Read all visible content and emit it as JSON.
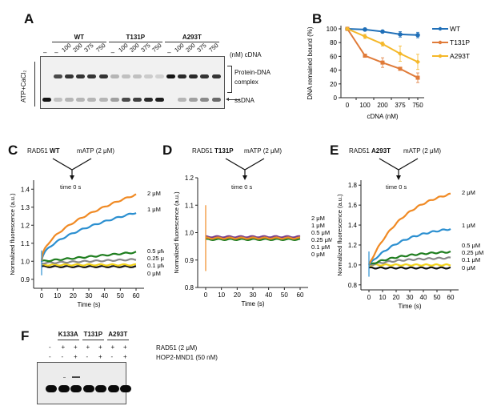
{
  "panels": {
    "A": {
      "letter": "A",
      "groups": [
        "WT",
        "T131P",
        "A293T"
      ],
      "lane_labels": [
        "–",
        "–",
        "100",
        "200",
        "375",
        "750",
        "–",
        "100",
        "200",
        "375",
        "750",
        "–",
        "100",
        "200",
        "375",
        "750"
      ],
      "unit_label": "(nM) cDNA",
      "side_label": "ATP+CaCl₂",
      "band_labels": {
        "complex_line1": "Protein-DNA",
        "complex_line2": "complex",
        "ssdna": "ssDNA"
      },
      "complex_intensity": [
        0,
        0.75,
        0.85,
        0.85,
        0.85,
        0.85,
        0.25,
        0.2,
        0.2,
        0.15,
        0.12,
        1.0,
        0.9,
        0.9,
        0.85,
        0.85
      ],
      "ssdna_intensity": [
        1.0,
        0.2,
        0.25,
        0.25,
        0.25,
        0.25,
        0.35,
        0.75,
        0.8,
        0.9,
        0.95,
        0.0,
        0.25,
        0.35,
        0.45,
        0.6
      ]
    },
    "B": {
      "letter": "B"
    },
    "C": {
      "letter": "C",
      "protein_prefix": "RAD51",
      "protein": "WT",
      "nucleotide": "mATP (2 μM)",
      "time_label": "time 0 s"
    },
    "D": {
      "letter": "D",
      "protein_prefix": "RAD51",
      "protein": "T131P",
      "nucleotide": "mATP (2 μM)",
      "time_label": "time 0 s"
    },
    "E": {
      "letter": "E",
      "protein_prefix": "RAD51",
      "protein": "A293T",
      "nucleotide": "mATP (2 μM)",
      "time_label": "time 0 s"
    },
    "F": {
      "letter": "F",
      "groups": [
        "K133A",
        "T131P",
        "A293T"
      ],
      "rad51_row": [
        "-",
        "+",
        "+",
        "+",
        "+",
        "+",
        "+"
      ],
      "hop2_row": [
        "-",
        "-",
        "+",
        "-",
        "+",
        "-",
        "+"
      ],
      "rad51_label": "RAD51 (2 μM)",
      "hop2_label": "HOP2-MND1 (50 nM)"
    }
  },
  "chart_data": [
    {
      "id": "B",
      "type": "line",
      "title": "",
      "xlabel": "cDNA (nM)",
      "ylabel": "DNA remained bound (%)",
      "categories": [
        "0",
        "100",
        "200",
        "375",
        "750"
      ],
      "ylim": [
        0,
        100
      ],
      "yticks": [
        0,
        20,
        40,
        60,
        80,
        100
      ],
      "legend_position": "right",
      "series": [
        {
          "name": "WT",
          "color": "#1f6fb8",
          "marker": "circle",
          "values": [
            100,
            99,
            96,
            92,
            91
          ],
          "errors": [
            0,
            2,
            2,
            4,
            4
          ]
        },
        {
          "name": "T131P",
          "color": "#e07b39",
          "marker": "square",
          "values": [
            100,
            61,
            51,
            42,
            29
          ],
          "errors": [
            0,
            2,
            7,
            2,
            7
          ]
        },
        {
          "name": "A293T",
          "color": "#f5b82a",
          "marker": "diamond",
          "values": [
            100,
            89,
            78,
            64,
            52
          ],
          "errors": [
            0,
            3,
            3,
            11,
            11
          ]
        }
      ]
    },
    {
      "id": "C",
      "type": "line",
      "xlabel": "Time (s)",
      "ylabel": "Normalized fluorescence (a.u.)",
      "xlim": [
        0,
        60
      ],
      "ylim": [
        0.85,
        1.45
      ],
      "xticks": [
        0,
        10,
        20,
        30,
        40,
        50,
        60
      ],
      "yticks": [
        0.9,
        1.0,
        1.1,
        1.2,
        1.3,
        1.4
      ],
      "series": [
        {
          "name": "2 μM",
          "color": "#f08a24",
          "start": 1.0,
          "end": 1.37,
          "shape": "sqrt"
        },
        {
          "name": "1 μM",
          "color": "#2b8fd0",
          "start": 1.0,
          "end": 1.27,
          "shape": "sqrt"
        },
        {
          "name": "0.5 μM",
          "color": "#1e7d1e",
          "start": 1.0,
          "end": 1.05,
          "shape": "linear"
        },
        {
          "name": "0.25 μM",
          "color": "#888888",
          "start": 0.99,
          "end": 1.01,
          "shape": "linear"
        },
        {
          "name": "0.1 μM",
          "color": "#f2d21b",
          "start": 0.98,
          "end": 0.98,
          "shape": "flat"
        },
        {
          "name": "0 μM",
          "color": "#111111",
          "start": 0.97,
          "end": 0.97,
          "shape": "flat"
        }
      ]
    },
    {
      "id": "D",
      "type": "line",
      "xlabel": "Time (s)",
      "ylabel": "Normalized fluorescence (a.u.)",
      "xlim": [
        0,
        60
      ],
      "ylim": [
        0.8,
        1.2
      ],
      "xticks": [
        0,
        10,
        20,
        30,
        40,
        50,
        60
      ],
      "yticks": [
        0.8,
        0.9,
        1.0,
        1.1,
        1.2
      ],
      "series": [
        {
          "name": "2 μM",
          "color": "#f08a24",
          "start": 0.98,
          "end": 0.98,
          "shape": "flat"
        },
        {
          "name": "1 μM",
          "color": "#2b8fd0",
          "start": 0.98,
          "end": 0.98,
          "shape": "flat"
        },
        {
          "name": "0.5 μM",
          "color": "#1e7d1e",
          "start": 0.975,
          "end": 0.975,
          "shape": "flat"
        },
        {
          "name": "0.25 μM",
          "color": "#888888",
          "start": 0.98,
          "end": 0.98,
          "shape": "flat"
        },
        {
          "name": "0.1 μM",
          "color": "#f2d21b",
          "start": 0.98,
          "end": 0.98,
          "shape": "flat"
        },
        {
          "name": "0 μM",
          "color": "#7a3a8a",
          "start": 0.985,
          "end": 0.985,
          "shape": "flat"
        }
      ]
    },
    {
      "id": "E",
      "type": "line",
      "xlabel": "Time (s)",
      "ylabel": "Normalized fluorescence (a.u.)",
      "xlim": [
        0,
        60
      ],
      "ylim": [
        0.75,
        1.85
      ],
      "xticks": [
        0,
        10,
        20,
        30,
        40,
        50,
        60
      ],
      "yticks": [
        0.8,
        1.0,
        1.2,
        1.4,
        1.6,
        1.8
      ],
      "series": [
        {
          "name": "2 μM",
          "color": "#f08a24",
          "start": 1.0,
          "end": 1.71,
          "shape": "exp"
        },
        {
          "name": "1 μM",
          "color": "#2b8fd0",
          "start": 1.0,
          "end": 1.36,
          "shape": "exp"
        },
        {
          "name": "0.5 μM",
          "color": "#1e7d1e",
          "start": 1.0,
          "end": 1.13,
          "shape": "exp"
        },
        {
          "name": "0.25 μM",
          "color": "#888888",
          "start": 1.0,
          "end": 1.07,
          "shape": "exp"
        },
        {
          "name": "0.1 μM",
          "color": "#f2d21b",
          "start": 1.0,
          "end": 1.01,
          "shape": "flat"
        },
        {
          "name": "0 μM",
          "color": "#111111",
          "start": 0.97,
          "end": 0.97,
          "shape": "flat"
        }
      ]
    }
  ]
}
